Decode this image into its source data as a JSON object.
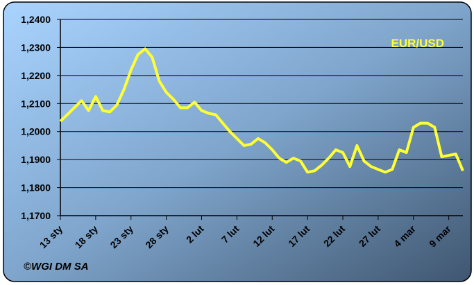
{
  "chart_data": {
    "type": "line",
    "categories": [
      "13 sty",
      null,
      null,
      null,
      null,
      "18 sty",
      null,
      null,
      null,
      null,
      "23 sty",
      null,
      null,
      null,
      null,
      "28 sty",
      null,
      null,
      null,
      null,
      "2 lut",
      null,
      null,
      null,
      null,
      "7 lut",
      null,
      null,
      null,
      null,
      "12 lut",
      null,
      null,
      null,
      null,
      "17 lut",
      null,
      null,
      null,
      null,
      "22 lut",
      null,
      null,
      null,
      null,
      "27 lut",
      null,
      null,
      null,
      null,
      "4 mar",
      null,
      null,
      null,
      null,
      "9 mar",
      null,
      null
    ],
    "series": [
      {
        "name": "EUR/USD",
        "color": "#ffff33",
        "values": [
          1.2037,
          1.2061,
          1.2086,
          1.211,
          1.2075,
          1.2125,
          1.2075,
          1.207,
          1.2095,
          1.215,
          1.222,
          1.2275,
          1.2295,
          1.2265,
          1.218,
          1.214,
          1.2115,
          1.2085,
          1.2085,
          1.2105,
          1.2075,
          1.2065,
          1.206,
          1.203,
          1.2,
          1.1975,
          1.195,
          1.1955,
          1.1975,
          1.196,
          1.1935,
          1.1905,
          1.189,
          1.1905,
          1.1895,
          1.1855,
          1.186,
          1.188,
          1.1905,
          1.1935,
          1.1925,
          1.1875,
          1.195,
          1.1895,
          1.1875,
          1.1865,
          1.1855,
          1.1865,
          1.1935,
          1.1925,
          1.2015,
          1.203,
          1.203,
          1.2015,
          1.191,
          1.1915,
          1.192,
          1.186
        ]
      }
    ],
    "ylim": [
      1.17,
      1.24
    ],
    "yticks": [
      {
        "value": 1.17,
        "label": "1,1700"
      },
      {
        "value": 1.18,
        "label": "1,1800"
      },
      {
        "value": 1.19,
        "label": "1,1900"
      },
      {
        "value": 1.2,
        "label": "1,2000"
      },
      {
        "value": 1.21,
        "label": "1,2100"
      },
      {
        "value": 1.22,
        "label": "1,2200"
      },
      {
        "value": 1.23,
        "label": "1,2300"
      },
      {
        "value": 1.24,
        "label": "1,2400"
      }
    ],
    "grid": true,
    "credit": "©WGI DM SA"
  }
}
